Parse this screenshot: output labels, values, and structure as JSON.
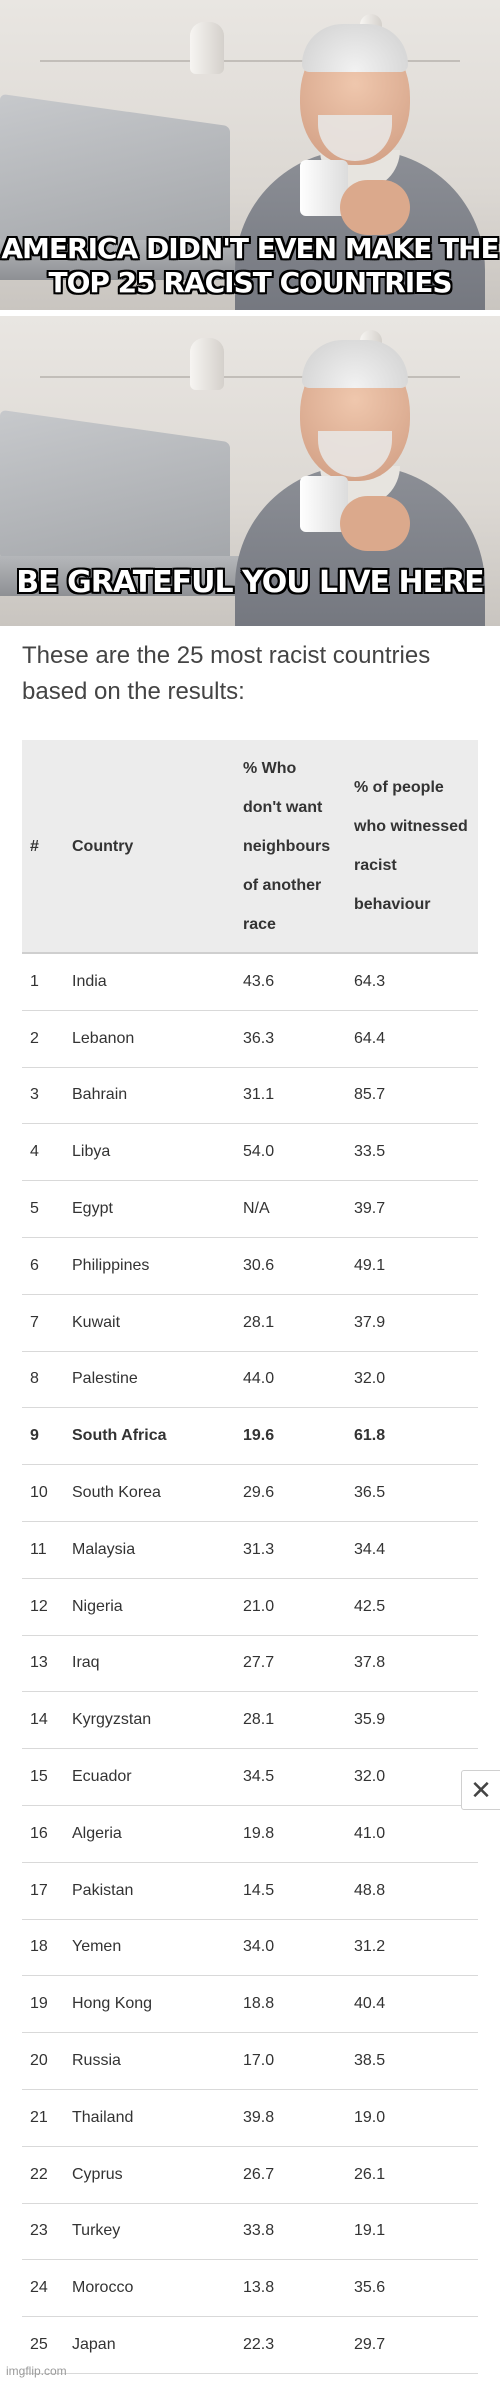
{
  "meme": {
    "top_caption": "AMERICA DIDN'T EVEN MAKE THE TOP 25 RACIST COUNTRIES",
    "bottom_caption": "BE GRATEFUL YOU LIVE HERE"
  },
  "article": {
    "intro": "These are the 25 most racist countries based on the results:"
  },
  "table": {
    "headers": {
      "num": "#",
      "country": "Country",
      "neighbours": "% Who don't want neighbours of another race",
      "witnessed": "% of people who witnessed racist behaviour"
    },
    "rows": [
      {
        "rank": "1",
        "country": "India",
        "neighbours": "43.6",
        "witnessed": "64.3"
      },
      {
        "rank": "2",
        "country": "Lebanon",
        "neighbours": "36.3",
        "witnessed": "64.4"
      },
      {
        "rank": "3",
        "country": "Bahrain",
        "neighbours": "31.1",
        "witnessed": "85.7"
      },
      {
        "rank": "4",
        "country": "Libya",
        "neighbours": "54.0",
        "witnessed": "33.5"
      },
      {
        "rank": "5",
        "country": "Egypt",
        "neighbours": "N/A",
        "witnessed": "39.7"
      },
      {
        "rank": "6",
        "country": "Philippines",
        "neighbours": "30.6",
        "witnessed": "49.1"
      },
      {
        "rank": "7",
        "country": "Kuwait",
        "neighbours": "28.1",
        "witnessed": "37.9"
      },
      {
        "rank": "8",
        "country": "Palestine",
        "neighbours": "44.0",
        "witnessed": "32.0"
      },
      {
        "rank": "9",
        "country": "South Africa",
        "neighbours": "19.6",
        "witnessed": "61.8"
      },
      {
        "rank": "10",
        "country": "South Korea",
        "neighbours": "29.6",
        "witnessed": "36.5"
      },
      {
        "rank": "11",
        "country": "Malaysia",
        "neighbours": "31.3",
        "witnessed": "34.4"
      },
      {
        "rank": "12",
        "country": "Nigeria",
        "neighbours": "21.0",
        "witnessed": "42.5"
      },
      {
        "rank": "13",
        "country": "Iraq",
        "neighbours": "27.7",
        "witnessed": "37.8"
      },
      {
        "rank": "14",
        "country": "Kyrgyzstan",
        "neighbours": "28.1",
        "witnessed": "35.9"
      },
      {
        "rank": "15",
        "country": "Ecuador",
        "neighbours": "34.5",
        "witnessed": "32.0"
      },
      {
        "rank": "16",
        "country": "Algeria",
        "neighbours": "19.8",
        "witnessed": "41.0"
      },
      {
        "rank": "17",
        "country": "Pakistan",
        "neighbours": "14.5",
        "witnessed": "48.8"
      },
      {
        "rank": "18",
        "country": "Yemen",
        "neighbours": "34.0",
        "witnessed": "31.2"
      },
      {
        "rank": "19",
        "country": "Hong Kong",
        "neighbours": "18.8",
        "witnessed": "40.4"
      },
      {
        "rank": "20",
        "country": "Russia",
        "neighbours": "17.0",
        "witnessed": "38.5"
      },
      {
        "rank": "21",
        "country": "Thailand",
        "neighbours": "39.8",
        "witnessed": "19.0"
      },
      {
        "rank": "22",
        "country": "Cyprus",
        "neighbours": "26.7",
        "witnessed": "26.1"
      },
      {
        "rank": "23",
        "country": "Turkey",
        "neighbours": "33.8",
        "witnessed": "19.1"
      },
      {
        "rank": "24",
        "country": "Morocco",
        "neighbours": "13.8",
        "witnessed": "35.6"
      },
      {
        "rank": "25",
        "country": "Japan",
        "neighbours": "22.3",
        "witnessed": "29.7"
      }
    ],
    "highlighted_rank": "9"
  },
  "close_button": {
    "label": "✕",
    "icon": "close-icon"
  },
  "watermark": "imgflip.com"
}
